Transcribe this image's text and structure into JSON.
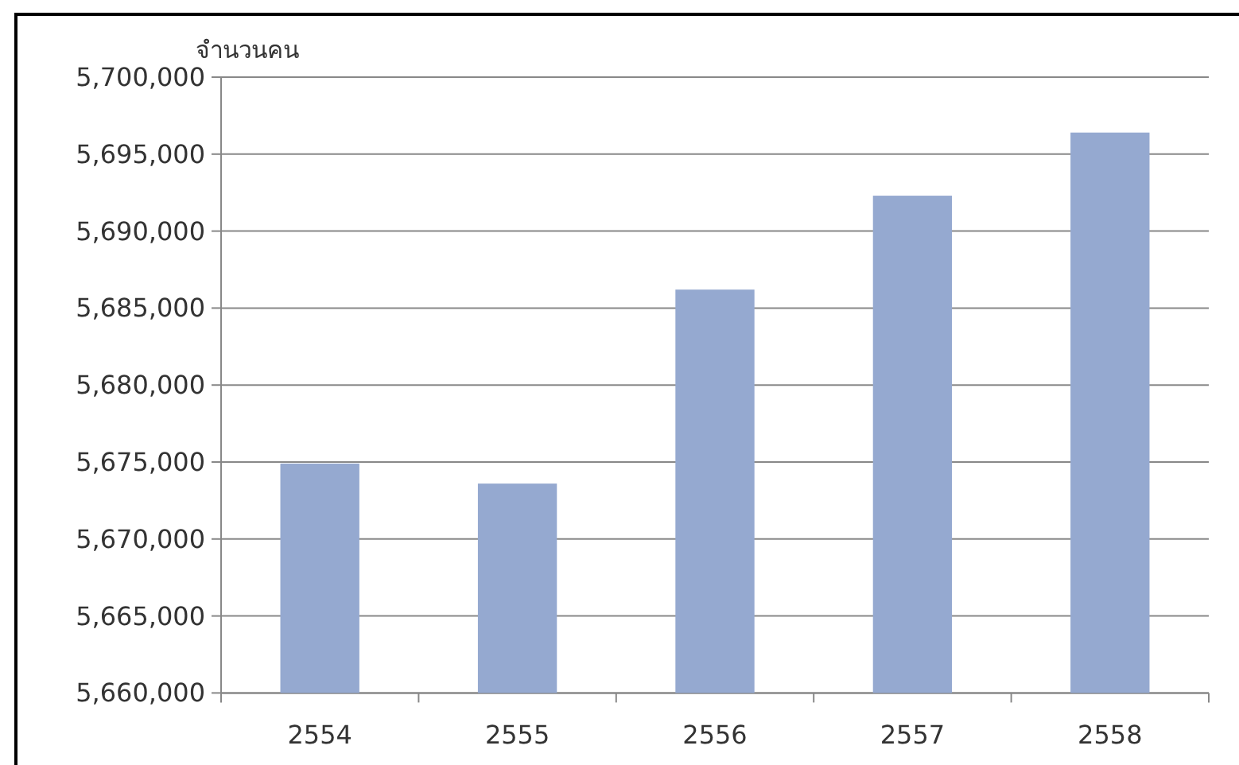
{
  "chart_data": {
    "type": "bar",
    "ylabel": "จำนวนคน",
    "categories": [
      "2554",
      "2555",
      "2556",
      "2557",
      "2558"
    ],
    "values": [
      5674900,
      5673600,
      5686200,
      5692300,
      5696400
    ],
    "color": "#95a9d0",
    "ylim": [
      5660000,
      5700000
    ],
    "yticks": [
      {
        "value": 5660000,
        "label": "5,660,000"
      },
      {
        "value": 5665000,
        "label": "5,665,000"
      },
      {
        "value": 5670000,
        "label": "5,670,000"
      },
      {
        "value": 5675000,
        "label": "5,675,000"
      },
      {
        "value": 5680000,
        "label": "5,680,000"
      },
      {
        "value": 5685000,
        "label": "5,685,000"
      },
      {
        "value": 5690000,
        "label": "5,690,000"
      },
      {
        "value": 5695000,
        "label": "5,695,000"
      },
      {
        "value": 5700000,
        "label": "5,700,000"
      }
    ],
    "grid": "y"
  }
}
